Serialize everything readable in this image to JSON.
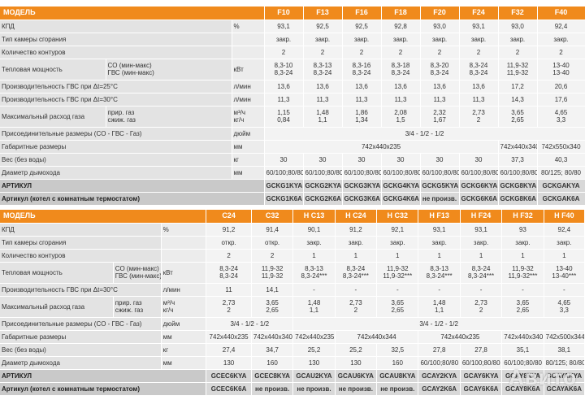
{
  "table1": {
    "header": {
      "label": "МОДЕЛЬ",
      "models": [
        "F10",
        "F13",
        "F16",
        "F18",
        "F20",
        "F24",
        "F32",
        "F40"
      ]
    },
    "rows": {
      "kpd": {
        "label": "КПД",
        "unit": "%",
        "values": [
          "93,1",
          "92,5",
          "92,5",
          "92,8",
          "93,0",
          "93,1",
          "93,0",
          "92,4"
        ]
      },
      "chamber": {
        "label": "Тип камеры сгорания",
        "values": [
          "закр.",
          "закр.",
          "закр.",
          "закр.",
          "закр.",
          "закр.",
          "закр.",
          "закр."
        ]
      },
      "circuits": {
        "label": "Количество контуров",
        "values": [
          "2",
          "2",
          "2",
          "2",
          "2",
          "2",
          "2",
          "2"
        ]
      },
      "power": {
        "label": "Тепловая мощность",
        "sub1": "CO (мин-макс)",
        "sub2": "ГВС (мин-макс)",
        "unit": "кВт",
        "v1": [
          "8,3-10",
          "8,3-13",
          "8,3-16",
          "8,3-18",
          "8,3-20",
          "8,3-24",
          "11,9-32",
          "13-40"
        ],
        "v2": [
          "8,3-24",
          "8,3-24",
          "8,3-24",
          "8,3-24",
          "8,3-24",
          "8,3-24",
          "11,9-32",
          "13-40"
        ]
      },
      "dhw25": {
        "label": "Производительность ГВС при Δt=25°C",
        "unit": "л/мин",
        "values": [
          "13,6",
          "13,6",
          "13,6",
          "13,6",
          "13,6",
          "13,6",
          "17,2",
          "20,6"
        ]
      },
      "dhw30": {
        "label": "Производительность ГВС при Δt=30°C",
        "unit": "л/мин",
        "values": [
          "11,3",
          "11,3",
          "11,3",
          "11,3",
          "11,3",
          "11,3",
          "14,3",
          "17,6"
        ]
      },
      "gas": {
        "label": "Максимальный расход газа",
        "sub1": "прир. газ",
        "sub2": "сжиж. газ",
        "unit1": "м³/ч",
        "unit2": "кг/ч",
        "v1": [
          "1,15",
          "1,48",
          "1,86",
          "2,08",
          "2,32",
          "2,73",
          "3,65",
          "4,65"
        ],
        "v2": [
          "0,84",
          "1,1",
          "1,34",
          "1,5",
          "1,67",
          "2",
          "2,65",
          "3,3"
        ]
      },
      "connect": {
        "label": "Присоединительные размеры (CO - ГВС - Газ)",
        "unit": "дюйм",
        "value": "3/4 - 1/2 - 1/2"
      },
      "dims": {
        "label": "Габаритные размеры",
        "unit": "мм",
        "value_a": "742x440x235",
        "value_b": "742x440x340",
        "value_c": "742x550x340"
      },
      "weight": {
        "label": "Вес (без воды)",
        "unit": "кг",
        "value_a": "30",
        "values_b": [
          "30",
          "30",
          "30",
          "30",
          "30",
          "30",
          "37,3",
          "40,3"
        ]
      },
      "flue": {
        "label": "Диаметр дымохода",
        "unit": "мм",
        "values": [
          "60/100;80/80",
          "60/100;80/80",
          "60/100;80/80",
          "60/100;80/80",
          "60/100;80/80",
          "60/100;80/80",
          "60/100;80/80",
          "80/125; 80/80"
        ]
      },
      "article": {
        "label": "АРТИКУЛ",
        "values": [
          "GCKG1KYA",
          "GCKG2KYA",
          "GCKG3KYA",
          "GCKG4KYA",
          "GCKG5KYA",
          "GCKG6KYA",
          "GCKG8KYA",
          "GCKGAKYA"
        ]
      },
      "article_t": {
        "label": "Артикул (котел с комнатным термостатом)",
        "values": [
          "GCKG1K6A",
          "GCKG2K6A",
          "GCKG3K6A",
          "GCKG4K6A",
          "не произв.",
          "GCKG6K6A",
          "GCKG8K6A",
          "GCKGAK6A"
        ]
      }
    }
  },
  "table2": {
    "header": {
      "label": "МОДЕЛЬ",
      "models": [
        "C24",
        "C32",
        "H C13",
        "H C24",
        "H C32",
        "H F13",
        "H F24",
        "H F32",
        "H F40"
      ]
    },
    "rows": {
      "kpd": {
        "label": "КПД",
        "unit": "%",
        "values": [
          "91,2",
          "91,4",
          "90,1",
          "91,2",
          "92,1",
          "93,1",
          "93,1",
          "93",
          "92,4"
        ]
      },
      "chamber": {
        "label": "Тип камеры сгорания",
        "values": [
          "откр.",
          "откр.",
          "закр.",
          "закр.",
          "закр.",
          "закр.",
          "закр.",
          "закр.",
          "закр."
        ]
      },
      "circuits": {
        "label": "Количество контуров",
        "values": [
          "2",
          "2",
          "1",
          "1",
          "1",
          "1",
          "1",
          "1",
          "1"
        ]
      },
      "power": {
        "label": "Тепловая мощность",
        "sub1": "CO (мин-макс)",
        "sub2": "ГВС (мин-макс)",
        "unit": "кВт",
        "v1": [
          "8,3-24",
          "11,9-32",
          "8,3-13",
          "8,3-24",
          "11,9-32",
          "8,3-13",
          "8,3-24",
          "11,9-32",
          "13-40"
        ],
        "v2": [
          "8,3-24",
          "11,9-32",
          "8,3-24***",
          "8,3-24***",
          "11,9-32***",
          "8,3-24***",
          "8,3-24***",
          "11,9-32***",
          "13-40***"
        ]
      },
      "dhw30": {
        "label": "Производительность ГВС при Δt=30°C",
        "unit": "л/мин",
        "values": [
          "11",
          "14,1",
          "-",
          "-",
          "-",
          "-",
          "-",
          "-",
          "-"
        ]
      },
      "gas": {
        "label": "Максимальный расход газа",
        "sub1": "прир. газ",
        "sub2": "сжиж. газ",
        "unit1": "м³/ч",
        "unit2": "кг/ч",
        "v1": [
          "2,73",
          "3,65",
          "1,48",
          "2,73",
          "3,65",
          "1,48",
          "2,73",
          "3,65",
          "4,65"
        ],
        "v2": [
          "2",
          "2,65",
          "1,1",
          "2",
          "2,65",
          "1,1",
          "2",
          "2,65",
          "3,3"
        ]
      },
      "connect": {
        "label": "Присоединительные размеры (CO - ГВС - Газ)",
        "unit": "дюйм",
        "value_a": "3/4 - 1/2 - 1/2",
        "value_b": "3/4 - 1/2 - 1/2"
      },
      "dims": {
        "label": "Габаритные размеры",
        "unit": "мм",
        "values": [
          "742x440x235",
          "742x440x340",
          "742x440x235",
          "742x440x344",
          "",
          "742x440x235",
          "",
          "742x440x340",
          "742x500x344"
        ]
      },
      "weight": {
        "label": "Вес (без воды)",
        "unit": "кг",
        "values": [
          "27,4",
          "34,7",
          "25,2",
          "25,2",
          "32,5",
          "27,8",
          "27,8",
          "35,1",
          "38,1"
        ]
      },
      "flue": {
        "label": "Диаметр дымохода",
        "unit": "мм",
        "values": [
          "130",
          "160",
          "130",
          "130",
          "160",
          "60/100;80/80",
          "60/100;80/80",
          "60/100;80/80",
          "80/125; 80/80"
        ]
      },
      "article": {
        "label": "АРТИКУЛ",
        "values": [
          "GCEC6KYA",
          "GCEC8KYA",
          "GCAU2KYA",
          "GCAU6KYA",
          "GCAU8KYA",
          "GCAY2KYA",
          "GCAY6KYA",
          "GCAY8KYA",
          "GCAYAKYA"
        ]
      },
      "article_t": {
        "label": "Артикул (котел с комнатным термостатом)",
        "values": [
          "GCEC6K6A",
          "не произв.",
          "не произв.",
          "не произв.",
          "не произв.",
          "GCAY2K6A",
          "GCAY6K6A",
          "GCAY8K6A",
          "GCAYAK6A"
        ]
      }
    }
  },
  "watermark": "Авито"
}
